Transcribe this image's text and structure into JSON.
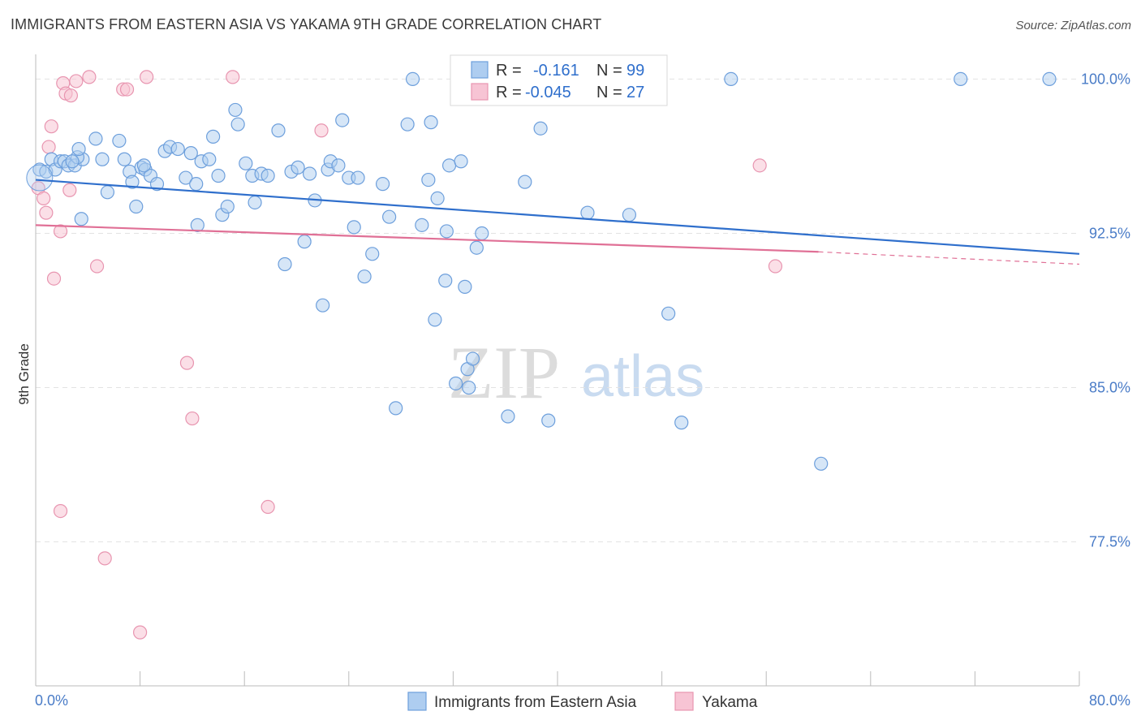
{
  "title": "IMMIGRANTS FROM EASTERN ASIA VS YAKAMA 9TH GRADE CORRELATION CHART",
  "source": "Source: ZipAtlas.com",
  "watermark": {
    "zip": "ZIP",
    "atlas": "atlas"
  },
  "colors": {
    "blue_fill": "#aecdf0",
    "blue_stroke": "#6d9fdc",
    "blue_line": "#2f6fcc",
    "pink_fill": "#f7c4d4",
    "pink_stroke": "#e895b0",
    "pink_line": "#e07096",
    "axis_text": "#4a7cc7",
    "grid": "#e3e3e3"
  },
  "legend": {
    "rows": [
      {
        "r_label": "R =",
        "r_value": "-0.161",
        "n_label": "N =",
        "n_value": "99"
      },
      {
        "r_label": "R =",
        "r_value": "-0.045",
        "n_label": "N =",
        "n_value": "27"
      }
    ]
  },
  "chart_data": {
    "type": "scatter",
    "title": "IMMIGRANTS FROM EASTERN ASIA VS YAKAMA 9TH GRADE CORRELATION CHART",
    "xlabel": "",
    "ylabel": "9th Grade",
    "xlim": [
      0,
      80
    ],
    "ylim": [
      70.5,
      101.2
    ],
    "x_tick_labels": [
      "0.0%",
      "80.0%"
    ],
    "y_ticks": [
      77.5,
      85.0,
      92.5,
      100.0
    ],
    "y_tick_labels": [
      "77.5%",
      "85.0%",
      "92.5%",
      "100.0%"
    ],
    "grid": true,
    "legend_position": "bottom",
    "series": [
      {
        "name": "Immigrants from Eastern Asia",
        "color": "#aecdf0",
        "trend": {
          "x": [
            0,
            80
          ],
          "y": [
            95.1,
            91.5
          ]
        },
        "points": [
          [
            0.3,
            95.6
          ],
          [
            0.8,
            95.5
          ],
          [
            1.2,
            96.1
          ],
          [
            1.5,
            95.6
          ],
          [
            1.9,
            96.0
          ],
          [
            2.2,
            96.0
          ],
          [
            2.5,
            95.8
          ],
          [
            3.0,
            95.8
          ],
          [
            3.6,
            96.1
          ],
          [
            3.2,
            96.2
          ],
          [
            3.5,
            93.2
          ],
          [
            3.3,
            96.6
          ],
          [
            4.6,
            97.1
          ],
          [
            5.1,
            96.1
          ],
          [
            5.5,
            94.5
          ],
          [
            6.4,
            97.0
          ],
          [
            6.8,
            96.1
          ],
          [
            7.2,
            95.5
          ],
          [
            7.4,
            95.0
          ],
          [
            7.7,
            93.8
          ],
          [
            8.1,
            95.7
          ],
          [
            8.4,
            95.6
          ],
          [
            8.8,
            95.3
          ],
          [
            9.3,
            94.9
          ],
          [
            9.9,
            96.5
          ],
          [
            10.3,
            96.7
          ],
          [
            10.9,
            96.6
          ],
          [
            11.5,
            95.2
          ],
          [
            11.9,
            96.4
          ],
          [
            12.3,
            94.9
          ],
          [
            12.7,
            96.0
          ],
          [
            13.6,
            97.2
          ],
          [
            14.0,
            95.3
          ],
          [
            14.3,
            93.4
          ],
          [
            14.7,
            93.8
          ],
          [
            15.3,
            98.5
          ],
          [
            15.5,
            97.8
          ],
          [
            16.1,
            95.9
          ],
          [
            16.6,
            95.3
          ],
          [
            17.3,
            95.4
          ],
          [
            17.8,
            95.3
          ],
          [
            18.6,
            97.5
          ],
          [
            19.1,
            91.0
          ],
          [
            19.6,
            95.5
          ],
          [
            20.1,
            95.7
          ],
          [
            20.6,
            92.1
          ],
          [
            21.0,
            95.4
          ],
          [
            21.4,
            94.1
          ],
          [
            22.0,
            89.0
          ],
          [
            22.4,
            95.6
          ],
          [
            22.6,
            96.0
          ],
          [
            23.2,
            95.8
          ],
          [
            23.5,
            98.0
          ],
          [
            24.0,
            95.2
          ],
          [
            24.4,
            92.8
          ],
          [
            24.7,
            95.2
          ],
          [
            25.2,
            90.4
          ],
          [
            25.8,
            91.5
          ],
          [
            26.6,
            94.9
          ],
          [
            27.1,
            93.3
          ],
          [
            27.6,
            84.0
          ],
          [
            28.5,
            97.8
          ],
          [
            28.9,
            100.0
          ],
          [
            29.6,
            92.9
          ],
          [
            30.1,
            95.1
          ],
          [
            30.6,
            88.3
          ],
          [
            30.8,
            94.2
          ],
          [
            31.4,
            90.2
          ],
          [
            31.5,
            92.6
          ],
          [
            31.7,
            95.8
          ],
          [
            32.2,
            85.2
          ],
          [
            32.6,
            96.0
          ],
          [
            32.9,
            89.9
          ],
          [
            33.1,
            85.9
          ],
          [
            33.2,
            85.0
          ],
          [
            33.5,
            86.4
          ],
          [
            33.8,
            91.8
          ],
          [
            36.2,
            83.6
          ],
          [
            37.5,
            95.0
          ],
          [
            38.0,
            100.1
          ],
          [
            38.7,
            97.6
          ],
          [
            39.3,
            83.4
          ],
          [
            40.8,
            100.0
          ],
          [
            42.3,
            93.5
          ],
          [
            43.4,
            100.0
          ],
          [
            45.5,
            93.4
          ],
          [
            48.5,
            88.6
          ],
          [
            49.5,
            83.3
          ],
          [
            53.3,
            100.0
          ],
          [
            60.2,
            81.3
          ],
          [
            70.9,
            100.0
          ],
          [
            77.7,
            100.0
          ],
          [
            34.2,
            92.5
          ],
          [
            13.3,
            96.1
          ],
          [
            2.8,
            96.0
          ],
          [
            8.3,
            95.8
          ],
          [
            12.4,
            92.9
          ],
          [
            16.8,
            94.0
          ],
          [
            30.3,
            97.9
          ]
        ]
      },
      {
        "name": "Yakama",
        "color": "#f7c4d4",
        "trend": {
          "x": [
            0,
            60
          ],
          "y": [
            92.9,
            91.6
          ]
        },
        "trend_dashed": {
          "x": [
            60,
            80
          ],
          "y": [
            91.6,
            91.0
          ]
        },
        "points": [
          [
            0.2,
            94.7
          ],
          [
            0.6,
            94.2
          ],
          [
            0.8,
            93.5
          ],
          [
            1.0,
            96.7
          ],
          [
            1.2,
            97.7
          ],
          [
            1.4,
            90.3
          ],
          [
            1.9,
            92.6
          ],
          [
            2.1,
            99.8
          ],
          [
            2.3,
            99.3
          ],
          [
            2.6,
            94.6
          ],
          [
            2.7,
            99.2
          ],
          [
            3.1,
            99.9
          ],
          [
            4.1,
            100.1
          ],
          [
            4.7,
            90.9
          ],
          [
            5.3,
            76.7
          ],
          [
            6.7,
            99.5
          ],
          [
            7.0,
            99.5
          ],
          [
            8.0,
            73.1
          ],
          [
            8.5,
            100.1
          ],
          [
            11.6,
            86.2
          ],
          [
            12.0,
            83.5
          ],
          [
            15.1,
            100.1
          ],
          [
            17.8,
            79.2
          ],
          [
            21.9,
            97.5
          ],
          [
            55.5,
            95.8
          ],
          [
            56.7,
            90.9
          ],
          [
            1.9,
            79.0
          ]
        ]
      }
    ]
  },
  "bottom_legend": {
    "items": [
      {
        "label": "Immigrants from Eastern Asia"
      },
      {
        "label": "Yakama"
      }
    ]
  }
}
